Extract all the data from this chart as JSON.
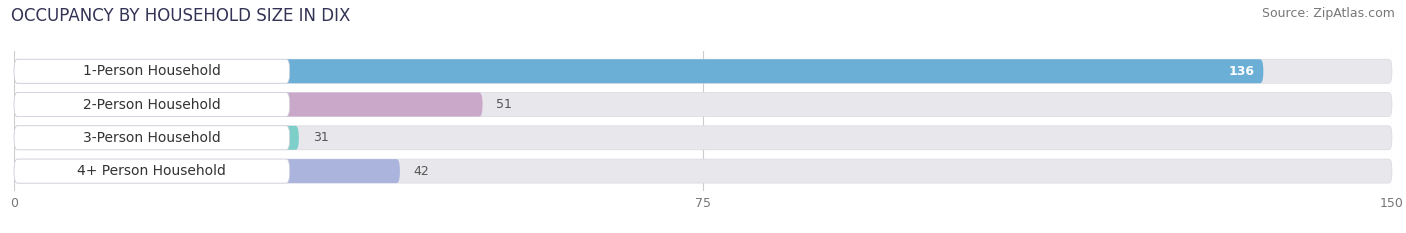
{
  "title": "OCCUPANCY BY HOUSEHOLD SIZE IN DIX",
  "source": "Source: ZipAtlas.com",
  "categories": [
    "1-Person Household",
    "2-Person Household",
    "3-Person Household",
    "4+ Person Household"
  ],
  "values": [
    136,
    51,
    31,
    42
  ],
  "bar_colors": [
    "#6baed6",
    "#c9a8c9",
    "#7ececa",
    "#aab4dd"
  ],
  "bar_bg_color": "#e8e8ec",
  "xlim": [
    0,
    150
  ],
  "xticks": [
    0,
    75,
    150
  ],
  "background_color": "#ffffff",
  "title_fontsize": 12,
  "source_fontsize": 9,
  "label_fontsize": 10,
  "value_fontsize": 9,
  "tick_fontsize": 9
}
